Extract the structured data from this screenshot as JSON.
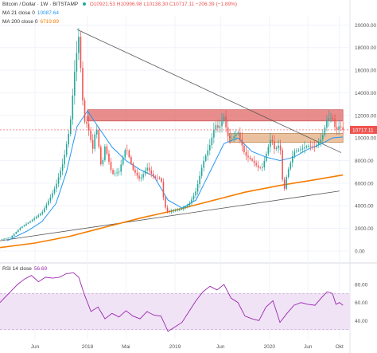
{
  "colors": {
    "up": "#26a69a",
    "down": "#ef5350",
    "ma21": "#2196f3",
    "ma200": "#f57c00",
    "rsi": "#9c27b0",
    "rsi_band": "#efe3f5",
    "resistance_zone": "#e06666",
    "support_zone": "#e3a878",
    "trendline": "#555555",
    "price_label_bg": "#ef5350",
    "grid": "#f0f3fa",
    "axis_text": "#555555"
  },
  "header": {
    "title": "Bitcoin / Dollar · 1W · BITSTAMP",
    "ohlc": "O10921.53  H10996.98  L10138.30  C10717.11  −206.39 (−1.89%)",
    "ma21_label": "MA 21 close 0",
    "ma21_value": "10087.64",
    "ma200_label": "MA 200 close 0",
    "ma200_value": "6719.89",
    "rsi_label": "RSI 14 close",
    "rsi_value": "56.69"
  },
  "chart_data": {
    "type": "line",
    "title": "Bitcoin / Dollar · 1W · BITSTAMP",
    "xlabel": "",
    "ylabel": "",
    "x_ticks": [
      "Jun",
      "2018",
      "Mai",
      "2019",
      "Jun",
      "2020",
      "Jun",
      "Okt"
    ],
    "x_tick_pos": [
      0.1,
      0.25,
      0.36,
      0.5,
      0.63,
      0.77,
      0.88,
      0.97
    ],
    "y_ticks": [
      0,
      2000,
      4000,
      6000,
      8000,
      10000,
      12000,
      14000,
      16000,
      18000,
      20000
    ],
    "ylim": [
      -500,
      20800
    ],
    "last_price": 10717.11,
    "price_path": [
      [
        0.0,
        1000
      ],
      [
        0.03,
        1200
      ],
      [
        0.06,
        2100
      ],
      [
        0.09,
        2700
      ],
      [
        0.12,
        3400
      ],
      [
        0.145,
        4800
      ],
      [
        0.16,
        5800
      ],
      [
        0.18,
        7800
      ],
      [
        0.2,
        11000
      ],
      [
        0.215,
        16500
      ],
      [
        0.225,
        19000
      ],
      [
        0.235,
        14000
      ],
      [
        0.24,
        11500
      ],
      [
        0.25,
        11200
      ],
      [
        0.265,
        9000
      ],
      [
        0.275,
        11200
      ],
      [
        0.29,
        7200
      ],
      [
        0.3,
        9300
      ],
      [
        0.32,
        6800
      ],
      [
        0.34,
        7000
      ],
      [
        0.36,
        9200
      ],
      [
        0.38,
        7200
      ],
      [
        0.4,
        6300
      ],
      [
        0.42,
        7400
      ],
      [
        0.44,
        6500
      ],
      [
        0.46,
        6400
      ],
      [
        0.47,
        4000
      ],
      [
        0.48,
        3400
      ],
      [
        0.5,
        3600
      ],
      [
        0.52,
        3700
      ],
      [
        0.54,
        4100
      ],
      [
        0.56,
        5300
      ],
      [
        0.58,
        7800
      ],
      [
        0.6,
        9400
      ],
      [
        0.615,
        11200
      ],
      [
        0.625,
        10800
      ],
      [
        0.64,
        11900
      ],
      [
        0.65,
        10200
      ],
      [
        0.66,
        9900
      ],
      [
        0.68,
        10500
      ],
      [
        0.7,
        8500
      ],
      [
        0.72,
        8000
      ],
      [
        0.74,
        7300
      ],
      [
        0.75,
        7400
      ],
      [
        0.76,
        8500
      ],
      [
        0.775,
        10100
      ],
      [
        0.785,
        8900
      ],
      [
        0.8,
        9500
      ],
      [
        0.81,
        5000
      ],
      [
        0.82,
        6800
      ],
      [
        0.84,
        8800
      ],
      [
        0.86,
        9000
      ],
      [
        0.88,
        9300
      ],
      [
        0.9,
        9200
      ],
      [
        0.92,
        10000
      ],
      [
        0.935,
        11700
      ],
      [
        0.95,
        11800
      ],
      [
        0.96,
        10600
      ],
      [
        0.97,
        11100
      ],
      [
        0.98,
        10717
      ]
    ],
    "ma21_path": [
      [
        0.02,
        900
      ],
      [
        0.08,
        1800
      ],
      [
        0.12,
        2600
      ],
      [
        0.16,
        4200
      ],
      [
        0.19,
        7000
      ],
      [
        0.22,
        11000
      ],
      [
        0.25,
        12400
      ],
      [
        0.28,
        11000
      ],
      [
        0.32,
        9200
      ],
      [
        0.36,
        8000
      ],
      [
        0.4,
        7200
      ],
      [
        0.44,
        6600
      ],
      [
        0.48,
        4500
      ],
      [
        0.52,
        3800
      ],
      [
        0.56,
        4500
      ],
      [
        0.6,
        7000
      ],
      [
        0.64,
        9500
      ],
      [
        0.68,
        10000
      ],
      [
        0.72,
        8800
      ],
      [
        0.76,
        8300
      ],
      [
        0.8,
        8000
      ],
      [
        0.84,
        8300
      ],
      [
        0.88,
        9000
      ],
      [
        0.92,
        9500
      ],
      [
        0.95,
        10000
      ],
      [
        0.98,
        10088
      ]
    ],
    "ma200_path": [
      [
        0.0,
        300
      ],
      [
        0.1,
        700
      ],
      [
        0.2,
        1300
      ],
      [
        0.3,
        2100
      ],
      [
        0.4,
        2900
      ],
      [
        0.5,
        3600
      ],
      [
        0.6,
        4400
      ],
      [
        0.7,
        5200
      ],
      [
        0.8,
        5800
      ],
      [
        0.9,
        6300
      ],
      [
        0.98,
        6720
      ]
    ],
    "rsi": {
      "ylim": [
        20,
        95
      ],
      "band": [
        30,
        70
      ],
      "y_ticks": [
        40,
        60,
        80
      ],
      "path": [
        [
          0.0,
          60
        ],
        [
          0.03,
          72
        ],
        [
          0.05,
          80
        ],
        [
          0.07,
          86
        ],
        [
          0.09,
          90
        ],
        [
          0.11,
          83
        ],
        [
          0.13,
          88
        ],
        [
          0.15,
          87
        ],
        [
          0.17,
          88
        ],
        [
          0.19,
          92
        ],
        [
          0.21,
          93
        ],
        [
          0.225,
          88
        ],
        [
          0.24,
          70
        ],
        [
          0.26,
          50
        ],
        [
          0.28,
          55
        ],
        [
          0.3,
          42
        ],
        [
          0.32,
          48
        ],
        [
          0.34,
          44
        ],
        [
          0.36,
          51
        ],
        [
          0.38,
          45
        ],
        [
          0.4,
          42
        ],
        [
          0.42,
          50
        ],
        [
          0.44,
          46
        ],
        [
          0.46,
          45
        ],
        [
          0.48,
          28
        ],
        [
          0.5,
          33
        ],
        [
          0.52,
          38
        ],
        [
          0.54,
          50
        ],
        [
          0.56,
          62
        ],
        [
          0.58,
          72
        ],
        [
          0.6,
          78
        ],
        [
          0.62,
          74
        ],
        [
          0.64,
          80
        ],
        [
          0.66,
          65
        ],
        [
          0.68,
          60
        ],
        [
          0.7,
          45
        ],
        [
          0.72,
          42
        ],
        [
          0.74,
          40
        ],
        [
          0.76,
          55
        ],
        [
          0.78,
          62
        ],
        [
          0.8,
          38
        ],
        [
          0.82,
          48
        ],
        [
          0.84,
          57
        ],
        [
          0.86,
          60
        ],
        [
          0.88,
          58
        ],
        [
          0.9,
          57
        ],
        [
          0.92,
          66
        ],
        [
          0.935,
          72
        ],
        [
          0.95,
          70
        ],
        [
          0.96,
          58
        ],
        [
          0.97,
          60
        ],
        [
          0.98,
          57
        ]
      ]
    },
    "annotations": {
      "resistance_zone": {
        "x0": 0.25,
        "x1": 0.98,
        "y0": 11500,
        "y1": 12500
      },
      "support_zone": {
        "x0": 0.655,
        "x1": 0.98,
        "y0": 9600,
        "y1": 10400
      },
      "descending_trendline": {
        "x0": 0.22,
        "y0": 19600,
        "x1": 0.975,
        "y1": 8700
      },
      "ascending_trendline": {
        "x0": 0.0,
        "y0": 900,
        "x1": 0.97,
        "y1": 5300
      }
    }
  }
}
